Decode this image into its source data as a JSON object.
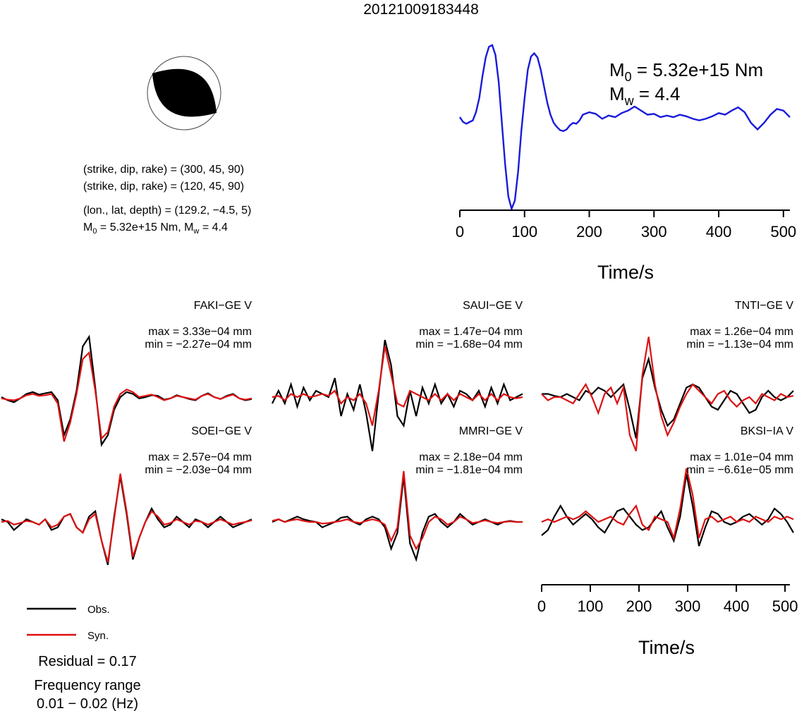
{
  "title": "20121009183448",
  "mechanism": {
    "plane1": "(strike, dip, rake) = (300, 45, 90)",
    "plane2": "(strike, dip, rake) = (120, 45, 90)",
    "location": "(lon., lat, depth) = (129.2, −4.5, 5)",
    "moment": "5.32e+15 Nm",
    "mw": "4.4"
  },
  "colors": {
    "observed": "#000000",
    "synthetic": "#dd1111",
    "stf": "#1a1adb"
  },
  "chart_data": [
    {
      "type": "line",
      "panel": "source-time-function",
      "annotation": {
        "m0": "5.32e+15 Nm",
        "mw": "4.4"
      },
      "xlabel": "Time/s",
      "xlim": [
        0,
        510
      ],
      "xticks": [
        0,
        100,
        200,
        300,
        400,
        500
      ],
      "series": [
        {
          "color": "#1a1adb",
          "x": [
            0,
            5,
            10,
            15,
            20,
            25,
            30,
            35,
            40,
            45,
            50,
            55,
            60,
            65,
            70,
            75,
            80,
            85,
            90,
            95,
            100,
            105,
            110,
            115,
            120,
            125,
            130,
            135,
            140,
            145,
            150,
            155,
            160,
            165,
            170,
            175,
            180,
            185,
            190,
            200,
            210,
            220,
            230,
            240,
            250,
            260,
            270,
            280,
            290,
            300,
            310,
            320,
            330,
            340,
            350,
            360,
            370,
            380,
            390,
            400,
            410,
            420,
            430,
            440,
            450,
            460,
            470,
            480,
            490,
            500,
            510
          ],
          "y": [
            0.12,
            0.06,
            0.04,
            0.06,
            0.08,
            0.18,
            0.35,
            0.62,
            0.85,
            0.98,
            1.0,
            0.88,
            0.55,
            0.05,
            -0.45,
            -0.85,
            -1.0,
            -0.9,
            -0.55,
            -0.05,
            0.35,
            0.7,
            0.86,
            0.9,
            0.85,
            0.7,
            0.5,
            0.3,
            0.15,
            0.05,
            0.0,
            -0.04,
            -0.05,
            -0.03,
            0.02,
            0.05,
            0.04,
            0.08,
            0.15,
            0.18,
            0.16,
            0.1,
            0.14,
            0.12,
            0.17,
            0.2,
            0.25,
            0.2,
            0.15,
            0.16,
            0.12,
            0.14,
            0.12,
            0.15,
            0.13,
            0.1,
            0.08,
            0.1,
            0.13,
            0.17,
            0.15,
            0.2,
            0.24,
            0.18,
            0.05,
            -0.03,
            0.05,
            0.15,
            0.22,
            0.2,
            0.12
          ]
        }
      ]
    },
    {
      "type": "line",
      "panel": "waveform-fits",
      "xlabel": "Time/s",
      "xlim": [
        0,
        510
      ],
      "xticks": [
        0,
        100,
        200,
        300,
        400,
        500
      ],
      "legend": {
        "observed": "Obs.",
        "synthetic": "Syn."
      },
      "stations": [
        {
          "name": "FAKI−GE V",
          "max": "max = 3.33e−04 mm",
          "min": "min = −2.27e−04 mm",
          "obs": [
            0.0,
            -0.05,
            -0.08,
            -0.02,
            0.05,
            0.08,
            0.04,
            0.06,
            0.08,
            -0.05,
            -0.6,
            -0.35,
            0.1,
            0.8,
            0.95,
            0.15,
            -0.75,
            -0.6,
            -0.2,
            0.0,
            0.08,
            0.05,
            -0.02,
            0.0,
            0.03,
            0.02,
            -0.04,
            -0.02,
            0.03,
            0.0,
            -0.03,
            -0.05,
            0.02,
            0.06,
            0.0,
            -0.03,
            0.02,
            0.05,
            -0.02,
            -0.05,
            -0.03
          ],
          "syn": [
            -0.02,
            -0.04,
            -0.05,
            -0.02,
            0.03,
            0.05,
            0.02,
            0.03,
            0.05,
            -0.1,
            -0.7,
            -0.4,
            0.05,
            0.6,
            0.7,
            0.1,
            -0.65,
            -0.55,
            -0.15,
            0.05,
            0.12,
            0.08,
            0.0,
            0.02,
            0.04,
            0.0,
            -0.05,
            -0.02,
            0.02,
            0.0,
            -0.02,
            -0.04,
            0.02,
            0.05,
            0.0,
            -0.03,
            0.01,
            0.04,
            -0.02,
            -0.04,
            -0.02
          ]
        },
        {
          "name": "SAUI−GE V",
          "max": "max = 1.47e−04 mm",
          "min": "min = −1.68e−04 mm",
          "obs": [
            -0.1,
            0.1,
            -0.1,
            0.2,
            -0.15,
            0.15,
            -0.05,
            0.1,
            0.05,
            0.0,
            0.3,
            -0.3,
            0.05,
            -0.2,
            0.2,
            -0.25,
            -0.85,
            0.05,
            0.9,
            0.5,
            -0.3,
            -0.45,
            0.1,
            -0.3,
            0.15,
            -0.1,
            0.2,
            -0.1,
            0.05,
            -0.15,
            0.1,
            0.05,
            -0.05,
            0.1,
            -0.15,
            0.15,
            -0.1,
            0.2,
            -0.05,
            0.0,
            0.05
          ],
          "syn": [
            0.0,
            0.02,
            -0.05,
            0.05,
            0.0,
            0.05,
            0.0,
            0.02,
            0.05,
            0.02,
            0.1,
            -0.1,
            0.0,
            -0.05,
            0.05,
            -0.1,
            -0.45,
            0.1,
            0.8,
            0.35,
            -0.1,
            -0.15,
            0.1,
            0.05,
            0.0,
            -0.05,
            0.05,
            -0.05,
            0.05,
            -0.05,
            0.05,
            0.0,
            -0.05,
            0.05,
            -0.05,
            0.05,
            -0.05,
            0.05,
            0.0,
            -0.02,
            0.0
          ]
        },
        {
          "name": "TNTI−GE V",
          "max": "max = 1.26e−04 mm",
          "min": "min = −1.13e−04 mm",
          "obs": [
            0.05,
            0.05,
            0.02,
            0.0,
            0.05,
            0.0,
            -0.05,
            0.1,
            0.05,
            0.15,
            0.1,
            0.0,
            0.1,
            0.2,
            -0.2,
            -0.65,
            0.3,
            0.6,
            0.15,
            -0.2,
            -0.45,
            -0.35,
            -0.1,
            0.15,
            0.2,
            0.15,
            0.0,
            -0.15,
            -0.2,
            -0.05,
            0.1,
            0.05,
            -0.1,
            -0.25,
            -0.2,
            0.0,
            0.1,
            0.0,
            -0.05,
            0.0,
            0.1
          ],
          "syn": [
            0.05,
            -0.05,
            0.0,
            0.0,
            -0.05,
            -0.1,
            0.05,
            0.2,
            0.0,
            -0.25,
            0.05,
            0.15,
            -0.1,
            0.15,
            -0.6,
            -0.85,
            0.35,
            0.95,
            0.2,
            -0.3,
            -0.6,
            -0.4,
            -0.15,
            0.05,
            0.2,
            0.1,
            0.0,
            -0.1,
            0.05,
            0.1,
            -0.05,
            -0.15,
            -0.05,
            0.0,
            -0.1,
            0.05,
            0.0,
            -0.05,
            0.05,
            0.0,
            0.02
          ]
        },
        {
          "name": "SOEI−GE V",
          "max": "max = 2.57e−04 mm",
          "min": "min = −2.03e−04 mm",
          "obs": [
            0.05,
            0.0,
            -0.15,
            -0.05,
            0.05,
            0.0,
            -0.05,
            0.05,
            -0.15,
            -0.1,
            0.1,
            0.15,
            -0.1,
            -0.2,
            0.1,
            0.2,
            -0.35,
            -0.8,
            0.1,
            0.85,
            0.15,
            -0.7,
            -0.3,
            0.0,
            0.25,
            0.05,
            -0.1,
            -0.05,
            0.1,
            0.0,
            -0.1,
            0.05,
            0.0,
            -0.1,
            0.0,
            0.1,
            0.0,
            -0.1,
            -0.05,
            0.0,
            0.05
          ],
          "syn": [
            0.0,
            0.02,
            -0.05,
            -0.02,
            0.02,
            0.0,
            -0.05,
            0.05,
            -0.1,
            -0.05,
            0.1,
            0.15,
            -0.1,
            -0.2,
            0.05,
            0.15,
            -0.35,
            -0.75,
            0.05,
            0.9,
            0.2,
            -0.65,
            -0.3,
            0.0,
            0.2,
            0.1,
            -0.05,
            -0.02,
            0.05,
            0.0,
            -0.05,
            0.02,
            0.0,
            -0.05,
            0.0,
            0.05,
            0.0,
            -0.05,
            -0.02,
            0.0,
            0.03
          ]
        },
        {
          "name": "MMRI−GE V",
          "max": "max = 2.18e−04 mm",
          "min": "min = −1.81e−04 mm",
          "obs": [
            0.0,
            0.05,
            0.0,
            0.05,
            0.1,
            0.05,
            0.02,
            0.0,
            -0.1,
            -0.05,
            0.0,
            0.08,
            0.1,
            0.0,
            -0.05,
            0.05,
            0.1,
            0.05,
            -0.1,
            -0.5,
            -0.2,
            0.85,
            -0.4,
            -0.7,
            -0.2,
            0.1,
            0.15,
            0.0,
            -0.1,
            0.0,
            0.15,
            0.05,
            -0.05,
            0.0,
            0.05,
            0.0,
            -0.05,
            0.0,
            0.02,
            0.0,
            0.0
          ],
          "syn": [
            0.02,
            0.05,
            0.0,
            0.03,
            0.05,
            0.02,
            0.0,
            0.0,
            -0.03,
            -0.02,
            0.0,
            0.02,
            0.05,
            0.0,
            -0.02,
            0.02,
            0.05,
            0.02,
            -0.05,
            -0.35,
            -0.1,
            0.95,
            -0.25,
            -0.5,
            -0.3,
            0.0,
            0.1,
            0.05,
            -0.05,
            0.0,
            0.1,
            0.05,
            -0.02,
            0.0,
            0.03,
            0.0,
            -0.02,
            0.0,
            0.01,
            0.0,
            0.0
          ]
        },
        {
          "name": "BKSI−IA V",
          "max": "max = 1.01e−04 mm",
          "min": "min = −6.61e−05 mm",
          "obs": [
            -0.25,
            -0.15,
            0.1,
            0.3,
            0.1,
            -0.05,
            0.05,
            0.15,
            0.05,
            -0.1,
            -0.2,
            0.0,
            0.2,
            0.25,
            0.1,
            -0.05,
            -0.15,
            -0.1,
            0.05,
            0.2,
            -0.1,
            -0.35,
            0.1,
            0.9,
            0.3,
            -0.45,
            -0.1,
            0.2,
            0.15,
            0.0,
            -0.05,
            0.0,
            0.1,
            0.15,
            0.05,
            -0.05,
            0.05,
            0.25,
            0.15,
            0.0,
            -0.2
          ],
          "syn": [
            0.0,
            0.05,
            0.0,
            0.05,
            0.1,
            0.05,
            0.1,
            0.2,
            0.1,
            0.0,
            0.05,
            0.1,
            0.0,
            -0.05,
            0.15,
            0.3,
            -0.05,
            -0.15,
            0.1,
            0.05,
            0.0,
            -0.3,
            0.25,
            1.0,
            0.5,
            -0.3,
            0.05,
            0.1,
            0.0,
            0.05,
            0.1,
            0.0,
            0.05,
            0.0,
            0.1,
            0.05,
            0.0,
            0.1,
            0.05,
            0.1,
            0.05
          ]
        }
      ]
    }
  ],
  "footer": {
    "residual": "Residual = 0.17",
    "frequency_label": "Frequency range",
    "frequency_value": "0.01 − 0.02 (Hz)"
  }
}
